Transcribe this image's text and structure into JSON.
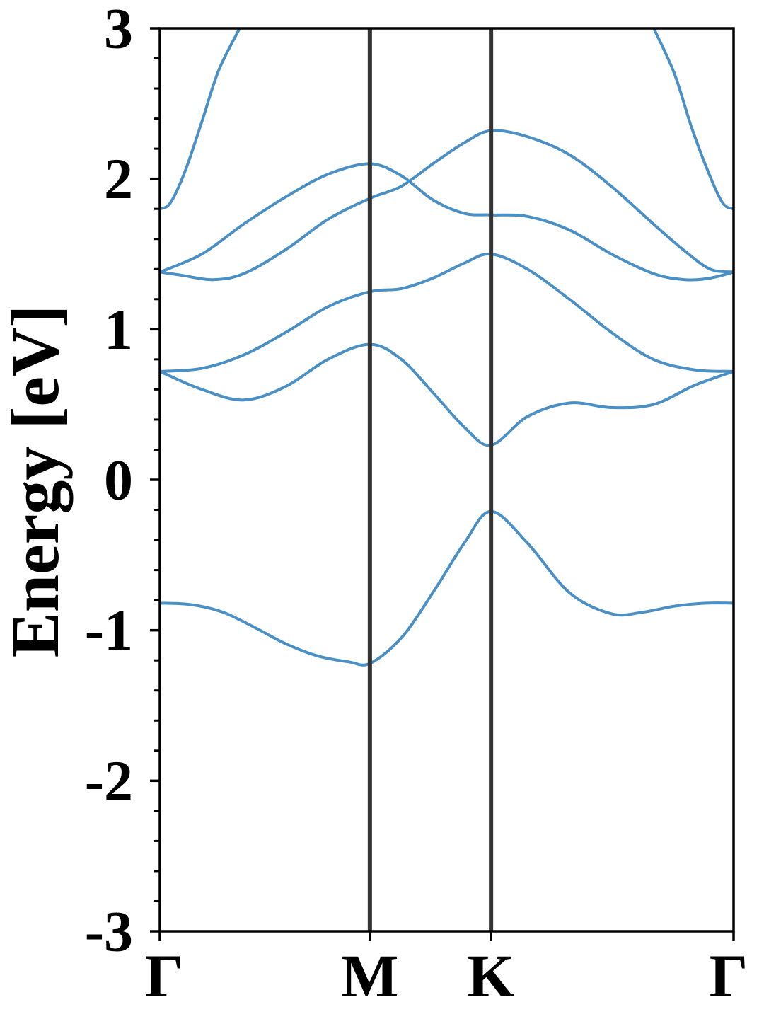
{
  "chart_data": {
    "type": "line",
    "title": "",
    "xlabel": "",
    "ylabel": "Energy [eV]",
    "ylim": [
      -3,
      3
    ],
    "yticks": [
      -3,
      -2,
      -1,
      0,
      1,
      2,
      3
    ],
    "ytick_labels": [
      "-3",
      "-2",
      "-1",
      "0",
      "1",
      "2",
      "3"
    ],
    "minor_ytick_step": 0.2,
    "grid": false,
    "legend": "none",
    "kpath_labels": [
      "Γ",
      "M",
      "K",
      "Γ"
    ],
    "kpath_positions": [
      0,
      1,
      1.577,
      2.732
    ],
    "xlim": [
      0,
      2.732
    ],
    "band_color": "#4a90c4",
    "divider_color": "#333333",
    "series": [
      {
        "x": [
          0,
          0.15,
          0.3,
          0.45,
          0.6,
          0.75,
          0.9,
          1.0,
          1.15,
          1.3,
          1.45,
          1.577,
          1.75,
          1.95,
          2.15,
          2.3,
          2.45,
          2.6,
          2.732
        ],
        "values": [
          -0.82,
          -0.83,
          -0.88,
          -0.98,
          -1.09,
          -1.17,
          -1.21,
          -1.22,
          -1.05,
          -0.75,
          -0.42,
          -0.21,
          -0.42,
          -0.75,
          -0.89,
          -0.88,
          -0.84,
          -0.82,
          -0.82
        ]
      },
      {
        "x": [
          0,
          0.2,
          0.4,
          0.6,
          0.8,
          1.0,
          1.15,
          1.3,
          1.45,
          1.577,
          1.75,
          1.95,
          2.15,
          2.35,
          2.55,
          2.732
        ],
        "values": [
          0.72,
          0.6,
          0.53,
          0.62,
          0.8,
          0.9,
          0.8,
          0.58,
          0.35,
          0.23,
          0.42,
          0.51,
          0.48,
          0.5,
          0.63,
          0.72
        ]
      },
      {
        "x": [
          0,
          0.2,
          0.4,
          0.6,
          0.8,
          1.0,
          1.15,
          1.3,
          1.45,
          1.577,
          1.75,
          1.95,
          2.15,
          2.35,
          2.55,
          2.732
        ],
        "values": [
          0.72,
          0.74,
          0.83,
          0.98,
          1.15,
          1.25,
          1.27,
          1.34,
          1.44,
          1.5,
          1.4,
          1.2,
          0.98,
          0.8,
          0.73,
          0.72
        ]
      },
      {
        "x": [
          0,
          0.1,
          0.25,
          0.4,
          0.6,
          0.8,
          1.0,
          1.15,
          1.3,
          1.45,
          1.577,
          1.75,
          1.95,
          2.15,
          2.35,
          2.5,
          2.62,
          2.732
        ],
        "values": [
          1.38,
          1.36,
          1.33,
          1.37,
          1.53,
          1.73,
          1.87,
          1.95,
          2.1,
          2.24,
          2.32,
          2.28,
          2.16,
          1.95,
          1.7,
          1.52,
          1.4,
          1.38
        ]
      },
      {
        "x": [
          0,
          0.2,
          0.4,
          0.6,
          0.8,
          1.0,
          1.15,
          1.3,
          1.45,
          1.577,
          1.75,
          1.95,
          2.15,
          2.35,
          2.5,
          2.62,
          2.732
        ],
        "values": [
          1.38,
          1.5,
          1.7,
          1.88,
          2.03,
          2.1,
          2.02,
          1.86,
          1.77,
          1.76,
          1.75,
          1.66,
          1.5,
          1.37,
          1.33,
          1.34,
          1.38
        ]
      },
      {
        "x": [
          0,
          0.05,
          0.12,
          0.2,
          0.28,
          0.38
        ],
        "values": [
          1.8,
          1.84,
          2.05,
          2.38,
          2.72,
          3.0
        ]
      },
      {
        "x": [
          2.352,
          2.45,
          2.53,
          2.61,
          2.68,
          2.732
        ],
        "values": [
          3.0,
          2.7,
          2.35,
          2.05,
          1.84,
          1.8
        ]
      }
    ]
  }
}
